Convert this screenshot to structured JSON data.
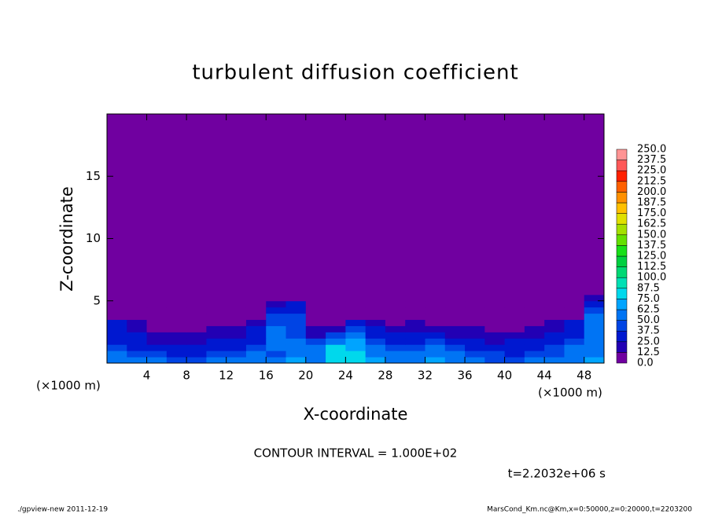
{
  "chart_data": {
    "type": "contour",
    "title": "turbulent diffusion coefficient",
    "xlabel": "X-coordinate",
    "ylabel": "Z-coordinate",
    "x_unit_label": "(×1000 m)",
    "y_unit_label": "(×1000 m)",
    "annotations": {
      "contour_interval": "CONTOUR INTERVAL = 1.000E+02",
      "time": "t=2.2032e+06 s",
      "footer_left": "./gpview-new  2011-12-19",
      "footer_right": "MarsCond_Km.nc@Km,x=0:50000,z=0:20000,t=2203200"
    },
    "xlim": [
      0,
      50
    ],
    "ylim": [
      0,
      20
    ],
    "xticks": [
      4,
      8,
      12,
      16,
      20,
      24,
      28,
      32,
      36,
      40,
      44,
      48
    ],
    "yticks": [
      5,
      10,
      15
    ],
    "x": [
      1,
      3,
      5,
      7,
      9,
      11,
      13,
      15,
      17,
      19,
      21,
      23,
      25,
      27,
      29,
      31,
      33,
      35,
      37,
      39,
      41,
      43,
      45,
      47,
      49
    ],
    "y": [
      0.25,
      0.75,
      1.25,
      1.75,
      2.25,
      2.75,
      3.25,
      3.75,
      4.25,
      4.75,
      5.25,
      5.75
    ],
    "z": [
      [
        60,
        55,
        50,
        45,
        40,
        50,
        55,
        60,
        50,
        70,
        60,
        75,
        80,
        65,
        55,
        60,
        70,
        55,
        50,
        45,
        40,
        50,
        55,
        60,
        65
      ],
      [
        50,
        45,
        40,
        35,
        30,
        40,
        45,
        50,
        45,
        60,
        55,
        80,
        85,
        60,
        50,
        55,
        60,
        50,
        45,
        40,
        35,
        40,
        45,
        55,
        60
      ],
      [
        40,
        35,
        30,
        25,
        25,
        30,
        30,
        40,
        50,
        55,
        60,
        75,
        70,
        55,
        45,
        45,
        50,
        40,
        35,
        30,
        30,
        35,
        40,
        50,
        55
      ],
      [
        35,
        30,
        20,
        20,
        20,
        25,
        25,
        35,
        55,
        50,
        45,
        60,
        65,
        45,
        35,
        35,
        40,
        30,
        25,
        20,
        25,
        25,
        30,
        40,
        55
      ],
      [
        30,
        25,
        15,
        15,
        15,
        20,
        20,
        30,
        55,
        45,
        20,
        40,
        50,
        35,
        25,
        25,
        30,
        20,
        20,
        15,
        15,
        20,
        25,
        35,
        60
      ],
      [
        30,
        20,
        10,
        10,
        10,
        15,
        15,
        25,
        50,
        45,
        15,
        20,
        40,
        25,
        15,
        20,
        20,
        15,
        15,
        10,
        10,
        15,
        20,
        30,
        60
      ],
      [
        25,
        15,
        5,
        5,
        5,
        10,
        10,
        20,
        45,
        45,
        10,
        10,
        25,
        15,
        10,
        15,
        10,
        10,
        10,
        5,
        5,
        10,
        15,
        25,
        55
      ],
      [
        5,
        0,
        0,
        0,
        0,
        0,
        0,
        5,
        40,
        40,
        0,
        0,
        5,
        0,
        0,
        0,
        0,
        0,
        0,
        0,
        0,
        0,
        5,
        10,
        50
      ],
      [
        0,
        0,
        0,
        0,
        0,
        0,
        0,
        0,
        35,
        35,
        0,
        0,
        0,
        0,
        0,
        0,
        0,
        0,
        0,
        0,
        0,
        0,
        0,
        0,
        45
      ],
      [
        0,
        0,
        0,
        0,
        0,
        0,
        0,
        0,
        20,
        25,
        0,
        0,
        0,
        0,
        0,
        0,
        0,
        0,
        0,
        0,
        0,
        0,
        0,
        0,
        35
      ],
      [
        0,
        0,
        0,
        0,
        0,
        0,
        0,
        0,
        5,
        10,
        0,
        0,
        0,
        0,
        0,
        0,
        0,
        0,
        0,
        0,
        0,
        0,
        0,
        0,
        20
      ],
      [
        0,
        0,
        0,
        0,
        0,
        0,
        0,
        0,
        0,
        0,
        0,
        0,
        0,
        0,
        0,
        0,
        0,
        0,
        0,
        0,
        0,
        0,
        0,
        0,
        10
      ]
    ],
    "levels": [
      {
        "value": 0,
        "label": "0.0"
      },
      12.5,
      {
        "value": 25,
        "label": "25.0"
      },
      37.5,
      {
        "value": 50,
        "label": "50.0"
      },
      62.5,
      {
        "value": 75,
        "label": "75.0"
      },
      87.5,
      {
        "value": 100,
        "label": "100.0"
      },
      112.5,
      {
        "value": 125,
        "label": "125.0"
      },
      137.5,
      {
        "value": 150,
        "label": "150.0"
      },
      162.5,
      {
        "value": 175,
        "label": "175.0"
      },
      187.5,
      {
        "value": 200,
        "label": "200.0"
      },
      212.5,
      {
        "value": 225,
        "label": "225.0"
      },
      237.5,
      {
        "value": 250,
        "label": "250.0"
      }
    ],
    "level_colors": [
      "#7000a0",
      "#2200b4",
      "#0018d0",
      "#0044e4",
      "#0074f4",
      "#00a4ff",
      "#00d8ec",
      "#00e0b4",
      "#00d874",
      "#00d040",
      "#18e018",
      "#64e000",
      "#a4e000",
      "#e0e000",
      "#ffc000",
      "#ff9000",
      "#ff6000",
      "#ff2000",
      "#ff5858",
      "#ff9494"
    ]
  }
}
